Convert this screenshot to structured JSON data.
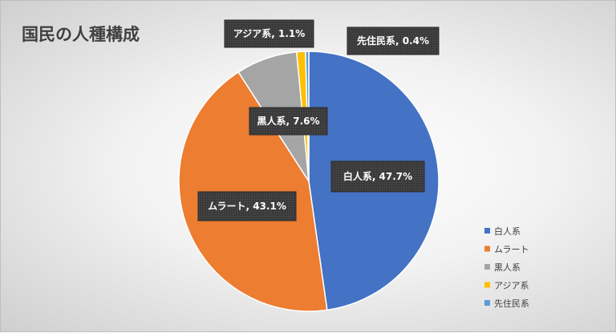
{
  "chart_data": {
    "type": "pie",
    "title": "国民の人種構成",
    "categories": [
      "白人系",
      "ムラート",
      "黒人系",
      "アジア系",
      "先住民系"
    ],
    "values": [
      47.7,
      43.1,
      7.6,
      1.1,
      0.4
    ],
    "data_labels": [
      "白人系, 47.7%",
      "ムラート, 43.1%",
      "黒人系, 7.6%",
      "アジア系, 1.1%",
      "先住民系, 0.4%"
    ],
    "colors": [
      "#4472c4",
      "#ed7d31",
      "#a5a5a5",
      "#ffc000",
      "#5b9bd5"
    ],
    "legend": "right",
    "start_angle": "12 o'clock, clockwise"
  }
}
